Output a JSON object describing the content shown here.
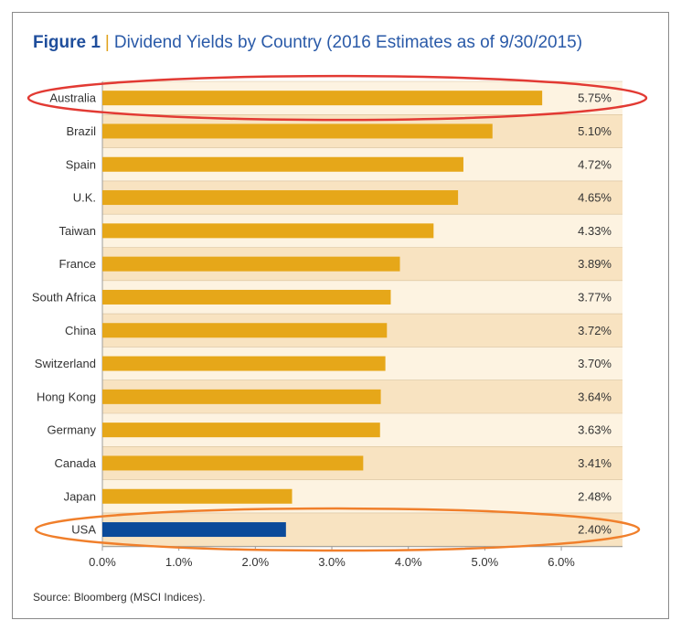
{
  "figure_label": "Figure 1",
  "separator": "|",
  "title": "Dividend Yields by Country (2016 Estimates as of 9/30/2015)",
  "source": "Source: Bloomberg (MSCI Indices).",
  "colors": {
    "bar": "#e6a719",
    "highlight_bar": "#0b4a9a",
    "band_light": "#fdf3e1",
    "band_dark": "#f8e3c1",
    "circle_top": "#e23a33",
    "circle_bottom": "#f07f2b"
  },
  "chart_data": {
    "type": "bar",
    "orientation": "horizontal",
    "categories": [
      "Australia",
      "Brazil",
      "Spain",
      "U.K.",
      "Taiwan",
      "France",
      "South Africa",
      "China",
      "Switzerland",
      "Hong Kong",
      "Germany",
      "Canada",
      "Japan",
      "USA"
    ],
    "values": [
      5.75,
      5.1,
      4.72,
      4.65,
      4.33,
      3.89,
      3.77,
      3.72,
      3.7,
      3.64,
      3.63,
      3.41,
      2.48,
      2.4
    ],
    "value_labels": [
      "5.75%",
      "5.10%",
      "4.72%",
      "4.65%",
      "4.33%",
      "3.89%",
      "3.77%",
      "3.72%",
      "3.70%",
      "3.64%",
      "3.63%",
      "3.41%",
      "2.48%",
      "2.40%"
    ],
    "highlighted": [
      "USA"
    ],
    "circled": [
      "Australia",
      "USA"
    ],
    "xlim": [
      0,
      6.8
    ],
    "xticks": [
      0,
      1,
      2,
      3,
      4,
      5,
      6
    ],
    "xtick_labels": [
      "0.0%",
      "1.0%",
      "2.0%",
      "3.0%",
      "4.0%",
      "5.0%",
      "6.0%"
    ],
    "grid": false,
    "legend": "none"
  }
}
